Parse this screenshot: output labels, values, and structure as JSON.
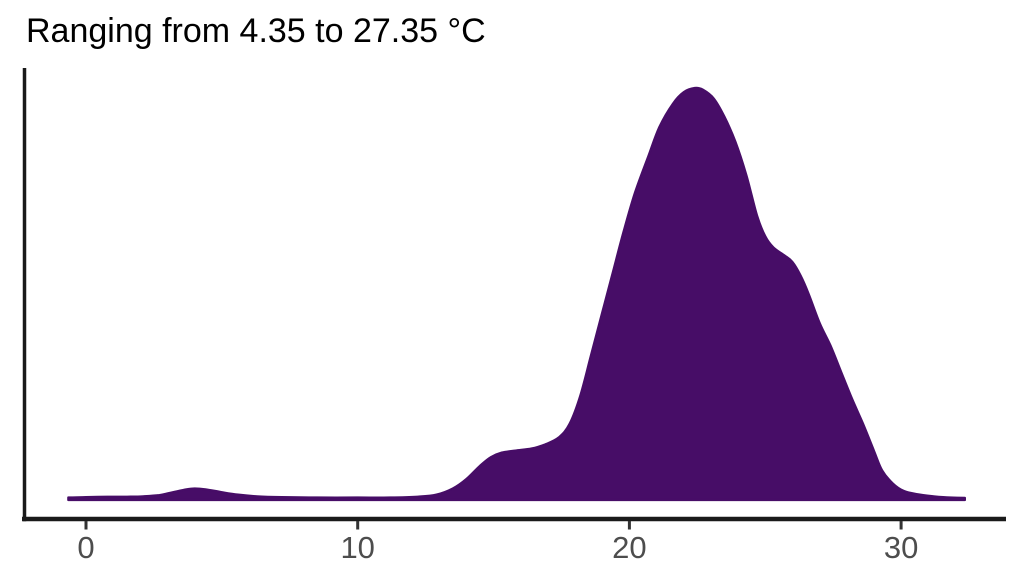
{
  "title": "Ranging from 4.35 to 27.35 °C",
  "colors": {
    "background": "#ffffff",
    "density_fill": "#470d67",
    "density_stroke": "#470d67",
    "axis_line": "#1a1a1a",
    "tick_mark": "#333333",
    "tick_label": "#4d4d4d",
    "title_text": "#000000"
  },
  "chart_data": {
    "type": "area",
    "subtype": "density",
    "title": "Ranging from 4.35 to 27.35 °C",
    "xlabel": "",
    "ylabel": "",
    "unit": "°C",
    "data_range": {
      "min": 4.35,
      "max": 27.35
    },
    "xlim": [
      -1.2,
      33.8
    ],
    "x_ticks": [
      0,
      10,
      20,
      30
    ],
    "x_tick_labels": [
      "0",
      "10",
      "20",
      "30"
    ],
    "grid": "off",
    "legend": "none",
    "peak_x": 22.5,
    "curve_note": "x in deg C, y is relative density (peak = 1)",
    "curve": [
      [
        -0.65,
        0.006
      ],
      [
        0.0,
        0.007
      ],
      [
        0.8,
        0.008
      ],
      [
        1.5,
        0.008
      ],
      [
        2.1,
        0.009
      ],
      [
        2.7,
        0.012
      ],
      [
        3.2,
        0.019
      ],
      [
        3.7,
        0.026
      ],
      [
        4.0,
        0.028
      ],
      [
        4.4,
        0.026
      ],
      [
        5.0,
        0.019
      ],
      [
        5.6,
        0.013
      ],
      [
        6.3,
        0.009
      ],
      [
        7.2,
        0.007
      ],
      [
        8.5,
        0.006
      ],
      [
        10.0,
        0.006
      ],
      [
        11.2,
        0.006
      ],
      [
        12.2,
        0.008
      ],
      [
        12.9,
        0.013
      ],
      [
        13.5,
        0.028
      ],
      [
        14.0,
        0.051
      ],
      [
        14.5,
        0.083
      ],
      [
        14.9,
        0.104
      ],
      [
        15.3,
        0.115
      ],
      [
        15.8,
        0.12
      ],
      [
        16.4,
        0.125
      ],
      [
        16.9,
        0.135
      ],
      [
        17.4,
        0.152
      ],
      [
        17.8,
        0.185
      ],
      [
        18.2,
        0.255
      ],
      [
        18.6,
        0.355
      ],
      [
        19.0,
        0.455
      ],
      [
        19.4,
        0.555
      ],
      [
        19.8,
        0.655
      ],
      [
        20.2,
        0.745
      ],
      [
        20.7,
        0.835
      ],
      [
        21.1,
        0.905
      ],
      [
        21.6,
        0.962
      ],
      [
        22.0,
        0.99
      ],
      [
        22.4,
        1.0
      ],
      [
        22.7,
        0.996
      ],
      [
        23.1,
        0.975
      ],
      [
        23.5,
        0.93
      ],
      [
        23.9,
        0.87
      ],
      [
        24.3,
        0.79
      ],
      [
        24.7,
        0.69
      ],
      [
        25.0,
        0.64
      ],
      [
        25.3,
        0.613
      ],
      [
        25.7,
        0.594
      ],
      [
        26.0,
        0.578
      ],
      [
        26.3,
        0.545
      ],
      [
        26.6,
        0.5
      ],
      [
        27.0,
        0.43
      ],
      [
        27.4,
        0.375
      ],
      [
        27.8,
        0.31
      ],
      [
        28.2,
        0.245
      ],
      [
        28.6,
        0.185
      ],
      [
        29.0,
        0.12
      ],
      [
        29.3,
        0.072
      ],
      [
        29.7,
        0.04
      ],
      [
        30.1,
        0.022
      ],
      [
        30.6,
        0.014
      ],
      [
        31.2,
        0.009
      ],
      [
        31.8,
        0.006
      ],
      [
        32.35,
        0.005
      ]
    ]
  }
}
